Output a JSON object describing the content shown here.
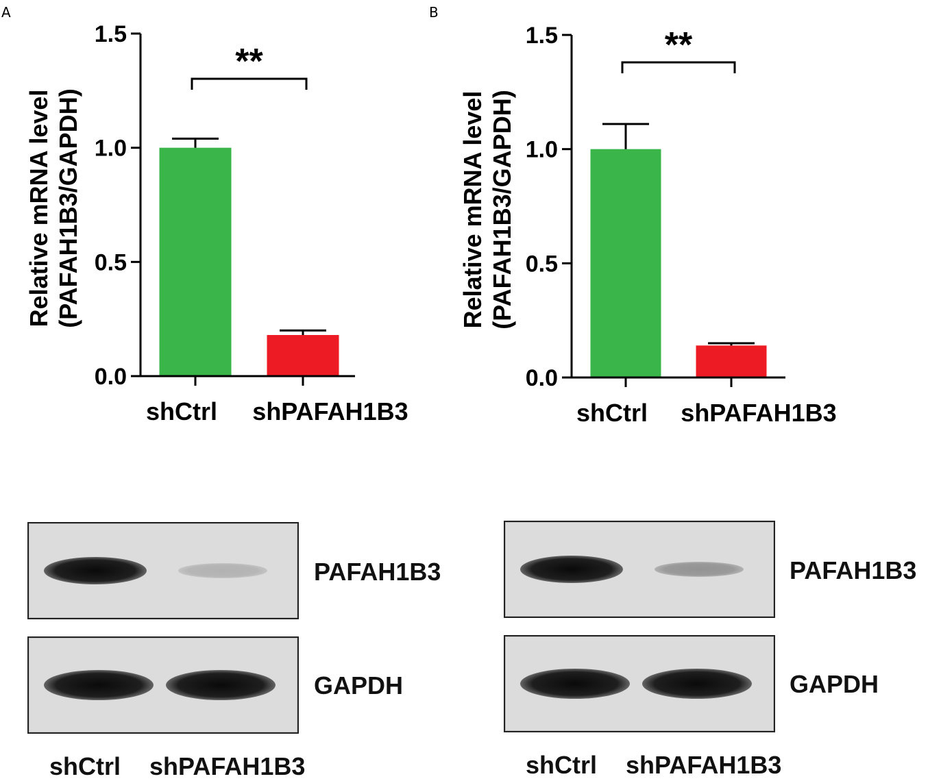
{
  "panels": [
    {
      "letter": "A",
      "blot": {
        "rows": [
          {
            "label": "PAFAH1B3",
            "band_intensity": [
              1.0,
              0.2
            ]
          },
          {
            "label": "GAPDH",
            "band_intensity": [
              1.0,
              1.0
            ]
          }
        ],
        "lanes": [
          "shCtrl",
          "shPAFAH1B3"
        ]
      }
    },
    {
      "letter": "B",
      "blot": {
        "rows": [
          {
            "label": "PAFAH1B3",
            "band_intensity": [
              1.0,
              0.35
            ]
          },
          {
            "label": "GAPDH",
            "band_intensity": [
              1.0,
              1.0
            ]
          }
        ],
        "lanes": [
          "shCtrl",
          "shPAFAH1B3"
        ]
      }
    }
  ],
  "chart_data": [
    {
      "type": "bar",
      "categories": [
        "shCtrl",
        "shPAFAH1B3"
      ],
      "values": [
        1.0,
        0.18
      ],
      "error": [
        0.04,
        0.02
      ],
      "colors": [
        "#39b54a",
        "#ed1c24"
      ],
      "ylabel_line1": "Relative mRNA level",
      "ylabel_line2": "(PAFAH1B3/GAPDH)",
      "ylim": [
        0,
        1.5
      ],
      "yticks": [
        "0.0",
        "0.5",
        "1.0",
        "1.5"
      ],
      "significance": "**"
    },
    {
      "type": "bar",
      "categories": [
        "shCtrl",
        "shPAFAH1B3"
      ],
      "values": [
        1.0,
        0.14
      ],
      "error": [
        0.11,
        0.01
      ],
      "colors": [
        "#39b54a",
        "#ed1c24"
      ],
      "ylabel_line1": "Relative mRNA level",
      "ylabel_line2": "(PAFAH1B3/GAPDH)",
      "ylim": [
        0,
        1.5
      ],
      "yticks": [
        "0.0",
        "0.5",
        "1.0",
        "1.5"
      ],
      "significance": "**"
    }
  ]
}
